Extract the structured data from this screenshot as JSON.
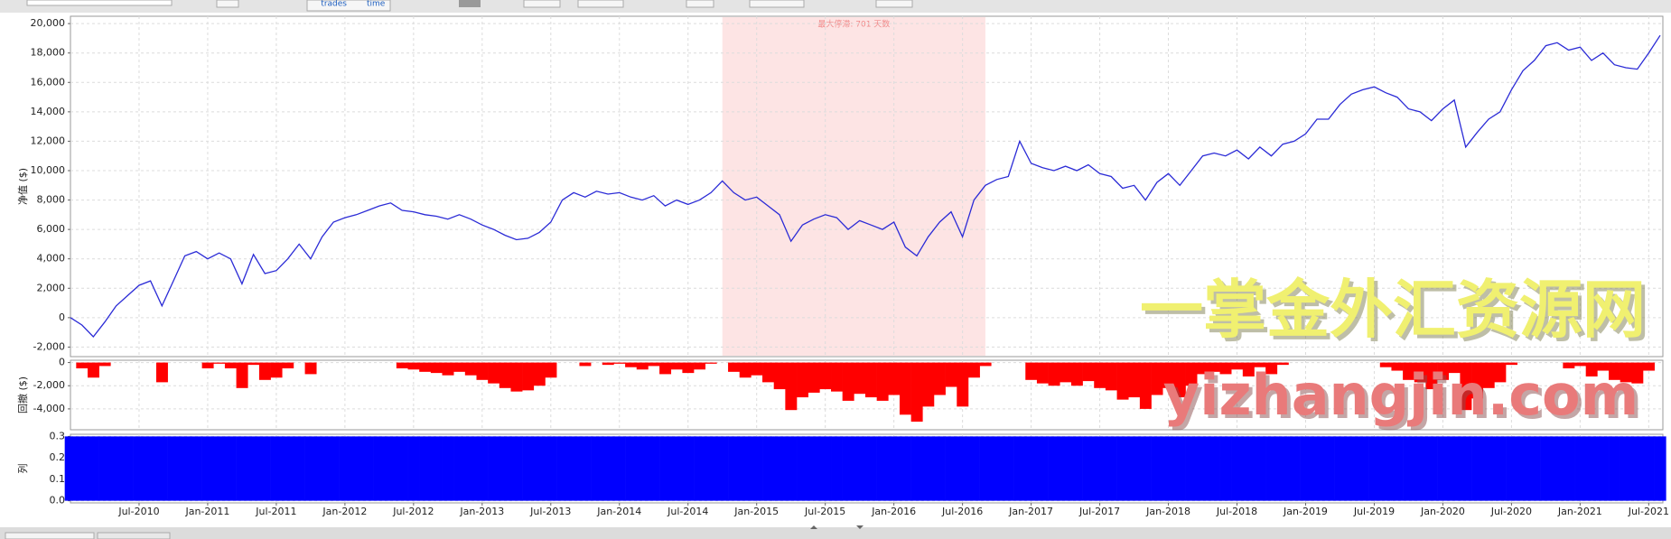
{
  "toolbar": {
    "labels": [
      "trades",
      "time"
    ]
  },
  "watermark": [
    "一掌金外汇资源网",
    "yizhangjin.com"
  ],
  "chart_data": [
    {
      "type": "line",
      "ylabel": "净值 ($)",
      "color": "#2b2bd6",
      "grid": true,
      "annotation": "最大停滞: 701 天数",
      "highlight": {
        "start": "Oct-2014",
        "end": "Sep-2016",
        "color": "#fde4e4"
      },
      "xlim": [
        "Jan-2010",
        "Aug-2021"
      ],
      "x": [
        "Jan-2010",
        "Feb-2010",
        "Mar-2010",
        "Apr-2010",
        "May-2010",
        "Jun-2010",
        "Jul-2010",
        "Aug-2010",
        "Sep-2010",
        "Oct-2010",
        "Nov-2010",
        "Dec-2010",
        "Jan-2011",
        "Feb-2011",
        "Mar-2011",
        "Apr-2011",
        "May-2011",
        "Jun-2011",
        "Jul-2011",
        "Aug-2011",
        "Sep-2011",
        "Oct-2011",
        "Nov-2011",
        "Dec-2011",
        "Jan-2012",
        "Feb-2012",
        "Mar-2012",
        "Apr-2012",
        "May-2012",
        "Jun-2012",
        "Jul-2012",
        "Aug-2012",
        "Sep-2012",
        "Oct-2012",
        "Nov-2012",
        "Dec-2012",
        "Jan-2013",
        "Feb-2013",
        "Mar-2013",
        "Apr-2013",
        "May-2013",
        "Jun-2013",
        "Jul-2013",
        "Aug-2013",
        "Sep-2013",
        "Oct-2013",
        "Nov-2013",
        "Dec-2013",
        "Jan-2014",
        "Feb-2014",
        "Mar-2014",
        "Apr-2014",
        "May-2014",
        "Jun-2014",
        "Jul-2014",
        "Aug-2014",
        "Sep-2014",
        "Oct-2014",
        "Nov-2014",
        "Dec-2014",
        "Jan-2015",
        "Feb-2015",
        "Mar-2015",
        "Apr-2015",
        "May-2015",
        "Jun-2015",
        "Jul-2015",
        "Aug-2015",
        "Sep-2015",
        "Oct-2015",
        "Nov-2015",
        "Dec-2015",
        "Jan-2016",
        "Feb-2016",
        "Mar-2016",
        "Apr-2016",
        "May-2016",
        "Jun-2016",
        "Jul-2016",
        "Aug-2016",
        "Sep-2016",
        "Oct-2016",
        "Nov-2016",
        "Dec-2016",
        "Jan-2017",
        "Feb-2017",
        "Mar-2017",
        "Apr-2017",
        "May-2017",
        "Jun-2017",
        "Jul-2017",
        "Aug-2017",
        "Sep-2017",
        "Oct-2017",
        "Nov-2017",
        "Dec-2017",
        "Jan-2018",
        "Feb-2018",
        "Mar-2018",
        "Apr-2018",
        "May-2018",
        "Jun-2018",
        "Jul-2018",
        "Aug-2018",
        "Sep-2018",
        "Oct-2018",
        "Nov-2018",
        "Dec-2018",
        "Jan-2019",
        "Feb-2019",
        "Mar-2019",
        "Apr-2019",
        "May-2019",
        "Jun-2019",
        "Jul-2019",
        "Aug-2019",
        "Sep-2019",
        "Oct-2019",
        "Nov-2019",
        "Dec-2019",
        "Jan-2020",
        "Feb-2020",
        "Mar-2020",
        "Apr-2020",
        "May-2020",
        "Jun-2020",
        "Jul-2020",
        "Aug-2020",
        "Sep-2020",
        "Oct-2020",
        "Nov-2020",
        "Dec-2020",
        "Jan-2021",
        "Feb-2021",
        "Mar-2021",
        "Apr-2021",
        "May-2021",
        "Jun-2021",
        "Jul-2021",
        "Aug-2021"
      ],
      "values": [
        0,
        -500,
        -1300,
        -300,
        800,
        1500,
        2200,
        2500,
        800,
        2500,
        4200,
        4500,
        4000,
        4400,
        4000,
        2300,
        4300,
        3000,
        3200,
        4000,
        5000,
        4000,
        5500,
        6500,
        6800,
        7000,
        7300,
        7600,
        7800,
        7300,
        7200,
        7000,
        6900,
        6700,
        7000,
        6700,
        6300,
        6000,
        5600,
        5300,
        5400,
        5800,
        6500,
        8000,
        8500,
        8200,
        8600,
        8400,
        8500,
        8200,
        8000,
        8300,
        7600,
        8000,
        7700,
        8000,
        8500,
        9300,
        8500,
        8000,
        8200,
        7600,
        7000,
        5200,
        6300,
        6700,
        7000,
        6800,
        6000,
        6600,
        6300,
        6000,
        6500,
        4800,
        4200,
        5500,
        6500,
        7200,
        5500,
        8000,
        9000,
        9400,
        9600,
        12000,
        10500,
        10200,
        10000,
        10300,
        10000,
        10400,
        9800,
        9600,
        8800,
        9000,
        8000,
        9200,
        9800,
        9000,
        10000,
        11000,
        11200,
        11000,
        11400,
        10800,
        11600,
        11000,
        11800,
        12000,
        12500,
        13500,
        13500,
        14500,
        15200,
        15500,
        15700,
        15300,
        15000,
        14200,
        14000,
        13400,
        14200,
        14800,
        11600,
        12600,
        13500,
        14000,
        15500,
        16800,
        17500,
        18500,
        18700,
        18200,
        18400,
        17500,
        18000,
        17200,
        17000,
        16900,
        18000,
        19200
      ],
      "ylim": [
        -2650,
        20500
      ],
      "yticks": [
        {
          "value": -2000,
          "label": "-2,000"
        },
        0,
        {
          "value": 2000,
          "label": "2,000"
        },
        {
          "value": 4000,
          "label": "4,000"
        },
        {
          "value": 6000,
          "label": "6,000"
        },
        {
          "value": 8000,
          "label": "8,000"
        },
        {
          "value": 10000,
          "label": "10,000"
        },
        {
          "value": 12000,
          "label": "12,000"
        },
        {
          "value": 14000,
          "label": "14,000"
        },
        {
          "value": 16000,
          "label": "16,000"
        },
        {
          "value": 18000,
          "label": "18,000"
        },
        {
          "value": 20000,
          "label": "20,000"
        }
      ]
    },
    {
      "type": "bar",
      "ylabel": "回撤 ($)",
      "color": "#ff0000",
      "grid": true,
      "values": [
        0,
        -500,
        -1300,
        -300,
        0,
        0,
        0,
        0,
        -1700,
        0,
        0,
        0,
        -500,
        -100,
        -500,
        -2200,
        -200,
        -1500,
        -1300,
        -500,
        0,
        -1000,
        0,
        0,
        0,
        0,
        0,
        0,
        0,
        -500,
        -600,
        -800,
        -900,
        -1100,
        -800,
        -1100,
        -1500,
        -1800,
        -2200,
        -2500,
        -2400,
        -2000,
        -1300,
        0,
        0,
        -300,
        0,
        -200,
        -100,
        -400,
        -600,
        -300,
        -1000,
        -600,
        -900,
        -600,
        -100,
        0,
        -800,
        -1300,
        -1100,
        -1700,
        -2300,
        -4100,
        -3000,
        -2600,
        -2300,
        -2500,
        -3300,
        -2700,
        -3000,
        -3300,
        -2800,
        -4500,
        -5100,
        -3800,
        -2800,
        -2100,
        -3800,
        -1300,
        -300,
        0,
        0,
        0,
        -1500,
        -1800,
        -2000,
        -1700,
        -2000,
        -1600,
        -2200,
        -2400,
        -3200,
        -3000,
        -4000,
        -2800,
        -2200,
        -3000,
        -2000,
        -1000,
        -800,
        -1000,
        -600,
        -1200,
        -400,
        -1000,
        -200,
        0,
        0,
        0,
        0,
        0,
        0,
        0,
        0,
        -400,
        -700,
        -1500,
        -1700,
        -2300,
        -1500,
        -900,
        -4100,
        -3100,
        -2200,
        -1700,
        -200,
        0,
        0,
        0,
        0,
        -500,
        -300,
        -1200,
        -700,
        -1500,
        -1700,
        -1800,
        -700,
        0
      ],
      "ylim": [
        -5800,
        200
      ],
      "yticks": [
        {
          "value": -4000,
          "label": "-4,000"
        },
        {
          "value": -2000,
          "label": "-2,000"
        },
        0
      ]
    },
    {
      "type": "bar",
      "ylabel": "列",
      "color": "#0000ff",
      "grid": true,
      "values": [
        0.3,
        0.3,
        0.3,
        0.3,
        0.3,
        0.3,
        0.3,
        0.3,
        0.3,
        0.3,
        0.3,
        0.3,
        0.3,
        0.3,
        0.3,
        0.3,
        0.3,
        0.3,
        0.3,
        0.3,
        0.3,
        0.3,
        0.3,
        0.3,
        0.3,
        0.3,
        0.3,
        0.3,
        0.3,
        0.3,
        0.3,
        0.3,
        0.3,
        0.3,
        0.3,
        0.3,
        0.3,
        0.3,
        0.3,
        0.3,
        0.3,
        0.3,
        0.3,
        0.3,
        0.3,
        0.3,
        0.3,
        0.3,
        0.3,
        0.3,
        0.3,
        0.3,
        0.3,
        0.3,
        0.3,
        0.3,
        0.3,
        0.3,
        0.3,
        0.3,
        0.3,
        0.3,
        0.3,
        0.3,
        0.3,
        0.3,
        0.3,
        0.3,
        0.3,
        0.3,
        0.3,
        0.3,
        0.3,
        0.3,
        0.3,
        0.3,
        0.3,
        0.3,
        0.3,
        0.3,
        0.3,
        0.3,
        0.3,
        0.3,
        0.3,
        0.3,
        0.3,
        0.3,
        0.3,
        0.3,
        0.3,
        0.3,
        0.3,
        0.3,
        0.3,
        0.3,
        0.3,
        0.3,
        0.3,
        0.3,
        0.3,
        0.3,
        0.3,
        0.3,
        0.3,
        0.3,
        0.3,
        0.3,
        0.3,
        0.3,
        0.3,
        0.3,
        0.3,
        0.3,
        0.3,
        0.3,
        0.3,
        0.3,
        0.3,
        0.3,
        0.3,
        0.3,
        0.3,
        0.3,
        0.3,
        0.3,
        0.3,
        0.3,
        0.3,
        0.3,
        0.3,
        0.3,
        0.3,
        0.3,
        0.3,
        0.3,
        0.3,
        0.3,
        0.3,
        0.3
      ],
      "ylim": [
        -0.01,
        0.31
      ],
      "yticks": [
        {
          "value": 0,
          "label": "0.0"
        },
        0.1,
        0.2,
        0.3
      ],
      "xticks": [
        "Jul-2010",
        "Jan-2011",
        "Jul-2011",
        "Jan-2012",
        "Jul-2012",
        "Jan-2013",
        "Jul-2013",
        "Jan-2014",
        "Jul-2014",
        "Jan-2015",
        "Jul-2015",
        "Jan-2016",
        "Jul-2016",
        "Jan-2017",
        "Jul-2017",
        "Jan-2018",
        "Jul-2018",
        "Jan-2019",
        "Jul-2019",
        "Jan-2020",
        "Jul-2020",
        "Jan-2021",
        "Jul-2021"
      ]
    }
  ]
}
